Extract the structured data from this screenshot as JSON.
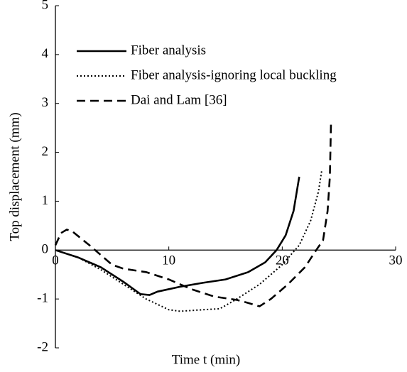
{
  "chart_data": {
    "type": "line",
    "xlabel": "Time t (min)",
    "ylabel": "Top displacement (mm)",
    "xlim": [
      0,
      30
    ],
    "xticks": [
      0,
      10,
      20,
      30
    ],
    "ylim": [
      -2,
      5
    ],
    "yticks": [
      -2,
      -1,
      0,
      1,
      2,
      3,
      4,
      5
    ],
    "legend": "upper left",
    "series": [
      {
        "name": "Fiber analysis",
        "color": "#000000",
        "style": "solid",
        "x": [
          0,
          2,
          4,
          6,
          7.5,
          8.3,
          9,
          11,
          13,
          15,
          17,
          18.5,
          19.5,
          20.3,
          21,
          21.5
        ],
        "values": [
          0,
          -0.15,
          -0.35,
          -0.65,
          -0.9,
          -0.92,
          -0.85,
          -0.75,
          -0.67,
          -0.6,
          -0.45,
          -0.25,
          0,
          0.3,
          0.8,
          1.5
        ]
      },
      {
        "name": "Fiber analysis-ignoring local buckling",
        "color": "#000000",
        "style": "dotted",
        "x": [
          0,
          2,
          4,
          6,
          8,
          10,
          11,
          13,
          14.5,
          16,
          18,
          20,
          21.5,
          22.5,
          23.2,
          23.5
        ],
        "values": [
          0,
          -0.15,
          -0.4,
          -0.7,
          -1.0,
          -1.22,
          -1.25,
          -1.22,
          -1.2,
          -1.0,
          -0.7,
          -0.3,
          0.1,
          0.6,
          1.2,
          1.65
        ]
      },
      {
        "name": "Dai and Lam [36]",
        "color": "#000000",
        "style": "dashed",
        "x": [
          0,
          0.5,
          1,
          1.5,
          3,
          4,
          5,
          6,
          8,
          10,
          12,
          14,
          16,
          17,
          18,
          19,
          20.5,
          22,
          23,
          23.6,
          24,
          24.2,
          24.3
        ],
        "values": [
          0.1,
          0.35,
          0.42,
          0.38,
          0.1,
          -0.1,
          -0.3,
          -0.38,
          -0.45,
          -0.6,
          -0.8,
          -0.95,
          -1.02,
          -1.08,
          -1.15,
          -1.0,
          -0.7,
          -0.35,
          0,
          0.2,
          0.8,
          1.5,
          2.6
        ]
      }
    ]
  }
}
